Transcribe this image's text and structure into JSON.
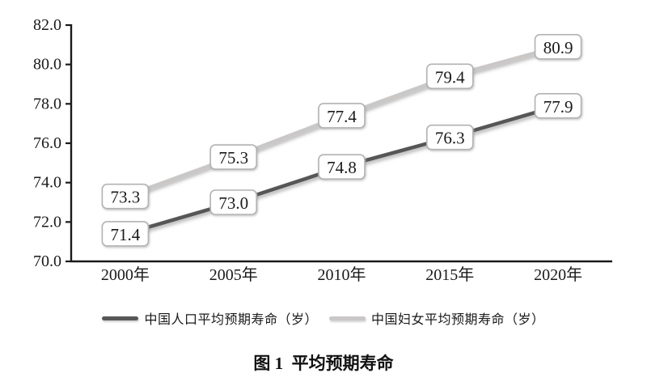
{
  "chart_data": {
    "type": "line",
    "title": "图 1  平均预期寿命",
    "categories": [
      "2000年",
      "2005年",
      "2010年",
      "2015年",
      "2020年"
    ],
    "series": [
      {
        "name": "中国人口平均预期寿命（岁）",
        "values": [
          71.4,
          73.0,
          74.8,
          76.3,
          77.9
        ],
        "color": "#575757"
      },
      {
        "name": "中国妇女平均预期寿命（岁）",
        "values": [
          73.3,
          75.3,
          77.4,
          79.4,
          80.9
        ],
        "color": "#cac7c7"
      }
    ],
    "ylim": [
      70.0,
      82.0
    ],
    "ytick_step": 2.0,
    "ytick_labels": [
      "70.0",
      "72.0",
      "74.0",
      "76.0",
      "78.0",
      "80.0",
      "82.0"
    ],
    "xlabel": "",
    "ylabel": "",
    "grid": false,
    "legend_position": "bottom",
    "data_labels": true,
    "axis_color": "#1a1a1a",
    "label_box": {
      "fill": "#ffffff",
      "border": "#b3b3b3",
      "text_color": "#1a1a1a"
    }
  }
}
